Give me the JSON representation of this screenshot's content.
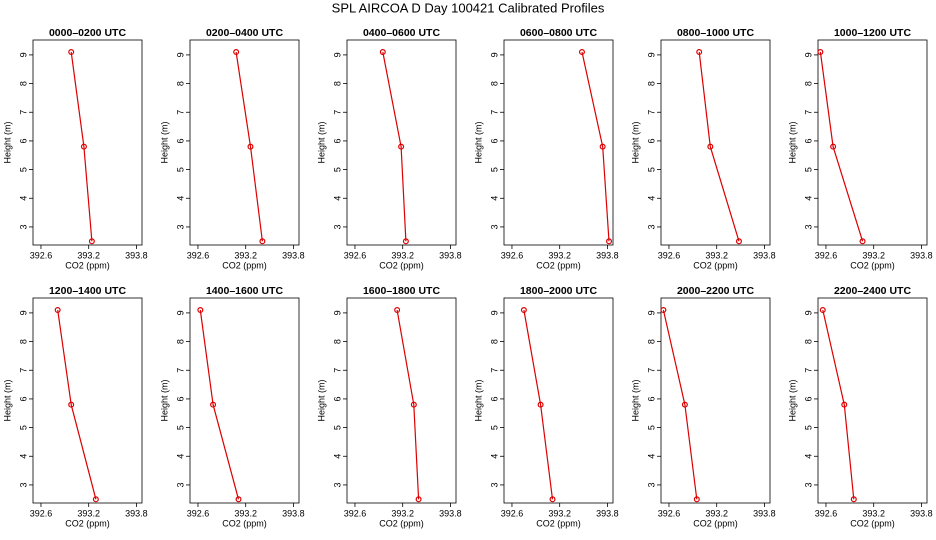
{
  "title": "SPL AIRCOA D  Day 100421  Calibrated Profiles",
  "chart_data": [
    {
      "type": "line",
      "title": "0000–0200 UTC",
      "xlabel": "CO2 (ppm)",
      "ylabel": "Height (m)",
      "color": "#dd0000",
      "x": [
        392.98,
        393.14,
        393.24
      ],
      "values": [
        9.1,
        5.8,
        2.5
      ],
      "xlim": [
        392.5,
        393.87
      ],
      "ylim": [
        2.37,
        9.52
      ],
      "xticks": [
        392.6,
        393.2,
        393.8
      ],
      "yticks": [
        3,
        4,
        5,
        6,
        7,
        8,
        9
      ]
    },
    {
      "type": "line",
      "title": "0200–0400 UTC",
      "xlabel": "CO2 (ppm)",
      "ylabel": "Height (m)",
      "color": "#dd0000",
      "x": [
        393.08,
        393.26,
        393.41
      ],
      "values": [
        9.1,
        5.8,
        2.5
      ],
      "xlim": [
        392.5,
        393.87
      ],
      "ylim": [
        2.37,
        9.52
      ],
      "xticks": [
        392.6,
        393.2,
        393.8
      ],
      "yticks": [
        3,
        4,
        5,
        6,
        7,
        8,
        9
      ]
    },
    {
      "type": "line",
      "title": "0400–0600 UTC",
      "xlabel": "CO2 (ppm)",
      "ylabel": "Height (m)",
      "color": "#dd0000",
      "x": [
        392.95,
        393.18,
        393.24
      ],
      "values": [
        9.1,
        5.8,
        2.5
      ],
      "xlim": [
        392.5,
        393.87
      ],
      "ylim": [
        2.37,
        9.52
      ],
      "xticks": [
        392.6,
        393.2,
        393.8
      ],
      "yticks": [
        3,
        4,
        5,
        6,
        7,
        8,
        9
      ]
    },
    {
      "type": "line",
      "title": "0600–0800 UTC",
      "xlabel": "CO2 (ppm)",
      "ylabel": "Height (m)",
      "color": "#dd0000",
      "x": [
        393.48,
        393.74,
        393.82
      ],
      "values": [
        9.1,
        5.8,
        2.5
      ],
      "xlim": [
        392.5,
        393.87
      ],
      "ylim": [
        2.37,
        9.52
      ],
      "xticks": [
        392.6,
        393.2,
        393.8
      ],
      "yticks": [
        3,
        4,
        5,
        6,
        7,
        8,
        9
      ]
    },
    {
      "type": "line",
      "title": "0800–1000 UTC",
      "xlabel": "CO2 (ppm)",
      "ylabel": "Height (m)",
      "color": "#dd0000",
      "x": [
        392.98,
        393.12,
        393.48
      ],
      "values": [
        9.1,
        5.8,
        2.5
      ],
      "xlim": [
        392.5,
        393.87
      ],
      "ylim": [
        2.37,
        9.52
      ],
      "xticks": [
        392.6,
        393.2,
        393.8
      ],
      "yticks": [
        3,
        4,
        5,
        6,
        7,
        8,
        9
      ]
    },
    {
      "type": "line",
      "title": "1000–1200 UTC",
      "xlabel": "CO2 (ppm)",
      "ylabel": "Height (m)",
      "color": "#dd0000",
      "x": [
        392.53,
        392.69,
        393.06
      ],
      "values": [
        9.1,
        5.8,
        2.5
      ],
      "xlim": [
        392.5,
        393.87
      ],
      "ylim": [
        2.37,
        9.52
      ],
      "xticks": [
        392.6,
        393.2,
        393.8
      ],
      "yticks": [
        3,
        4,
        5,
        6,
        7,
        8,
        9
      ]
    },
    {
      "type": "line",
      "title": "1200–1400 UTC",
      "xlabel": "CO2 (ppm)",
      "ylabel": "Height (m)",
      "color": "#dd0000",
      "x": [
        392.81,
        392.98,
        393.29
      ],
      "values": [
        9.1,
        5.8,
        2.5
      ],
      "xlim": [
        392.5,
        393.87
      ],
      "ylim": [
        2.37,
        9.52
      ],
      "xticks": [
        392.6,
        393.2,
        393.8
      ],
      "yticks": [
        3,
        4,
        5,
        6,
        7,
        8,
        9
      ]
    },
    {
      "type": "line",
      "title": "1400–1600 UTC",
      "xlabel": "CO2 (ppm)",
      "ylabel": "Height (m)",
      "color": "#dd0000",
      "x": [
        392.63,
        392.79,
        393.11
      ],
      "values": [
        9.1,
        5.8,
        2.5
      ],
      "xlim": [
        392.5,
        393.87
      ],
      "ylim": [
        2.37,
        9.52
      ],
      "xticks": [
        392.6,
        393.2,
        393.8
      ],
      "yticks": [
        3,
        4,
        5,
        6,
        7,
        8,
        9
      ]
    },
    {
      "type": "line",
      "title": "1600–1800 UTC",
      "xlabel": "CO2 (ppm)",
      "ylabel": "Height (m)",
      "color": "#dd0000",
      "x": [
        393.13,
        393.34,
        393.4
      ],
      "values": [
        9.1,
        5.8,
        2.5
      ],
      "xlim": [
        392.5,
        393.87
      ],
      "ylim": [
        2.37,
        9.52
      ],
      "xticks": [
        392.6,
        393.2,
        393.8
      ],
      "yticks": [
        3,
        4,
        5,
        6,
        7,
        8,
        9
      ]
    },
    {
      "type": "line",
      "title": "1800–2000 UTC",
      "xlabel": "CO2 (ppm)",
      "ylabel": "Height (m)",
      "color": "#dd0000",
      "x": [
        392.75,
        392.96,
        393.11
      ],
      "values": [
        9.1,
        5.8,
        2.5
      ],
      "xlim": [
        392.5,
        393.87
      ],
      "ylim": [
        2.37,
        9.52
      ],
      "xticks": [
        392.6,
        393.2,
        393.8
      ],
      "yticks": [
        3,
        4,
        5,
        6,
        7,
        8,
        9
      ]
    },
    {
      "type": "line",
      "title": "2000–2200 UTC",
      "xlabel": "CO2 (ppm)",
      "ylabel": "Height (m)",
      "color": "#dd0000",
      "x": [
        392.53,
        392.8,
        392.95
      ],
      "values": [
        9.1,
        5.8,
        2.5
      ],
      "xlim": [
        392.5,
        393.87
      ],
      "ylim": [
        2.37,
        9.52
      ],
      "xticks": [
        392.6,
        393.2,
        393.8
      ],
      "yticks": [
        3,
        4,
        5,
        6,
        7,
        8,
        9
      ]
    },
    {
      "type": "line",
      "title": "2200–2400 UTC",
      "xlabel": "CO2 (ppm)",
      "ylabel": "Height (m)",
      "color": "#dd0000",
      "x": [
        392.56,
        392.83,
        392.95
      ],
      "values": [
        9.1,
        5.8,
        2.5
      ],
      "xlim": [
        392.5,
        393.87
      ],
      "ylim": [
        2.37,
        9.52
      ],
      "xticks": [
        392.6,
        393.2,
        393.8
      ],
      "yticks": [
        3,
        4,
        5,
        6,
        7,
        8,
        9
      ]
    }
  ]
}
